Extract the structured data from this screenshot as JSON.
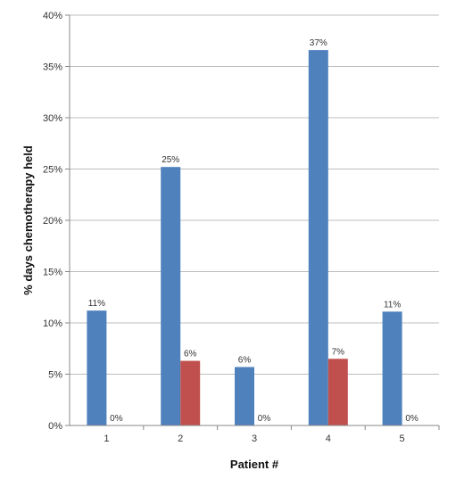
{
  "chart_data": {
    "type": "bar",
    "title": "",
    "xlabel": "Patient #",
    "ylabel": "% days chemotherapy held",
    "categories": [
      "1",
      "2",
      "3",
      "4",
      "5"
    ],
    "series": [
      {
        "color": "#4F81BD",
        "values": [
          11.2,
          25.2,
          5.7,
          36.6,
          11.1
        ],
        "labels": [
          "11%",
          "25%",
          "6%",
          "37%",
          "11%"
        ]
      },
      {
        "color": "#C0504D",
        "values": [
          0,
          6.3,
          0,
          6.5,
          0
        ],
        "labels": [
          "0%",
          "6%",
          "0%",
          "7%",
          "0%"
        ]
      }
    ],
    "ylim": [
      0,
      40
    ],
    "yticks": [
      0,
      5,
      10,
      15,
      20,
      25,
      30,
      35,
      40
    ],
    "ytick_labels": [
      "0%",
      "5%",
      "10%",
      "15%",
      "20%",
      "25%",
      "30%",
      "35%",
      "40%"
    ],
    "grid": true,
    "legend": "none"
  }
}
